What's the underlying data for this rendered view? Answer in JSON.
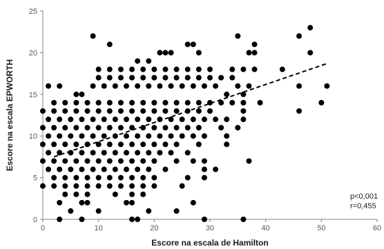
{
  "chart_data": {
    "type": "scatter",
    "xlabel": "Escore na escala de Hamilton",
    "ylabel": "Escore na escala EPWORTH",
    "xlim": [
      0,
      60
    ],
    "ylim": [
      0,
      25
    ],
    "x_ticks": [
      0,
      10,
      20,
      30,
      40,
      50,
      60
    ],
    "y_ticks": [
      0,
      5,
      10,
      15,
      20,
      25
    ],
    "grid": false,
    "legend": "none",
    "annotations": [
      "p<0,001",
      "r=0,455"
    ],
    "trendline": {
      "style": "dashed",
      "x": [
        2,
        51
      ],
      "y": [
        7.5,
        18.7
      ]
    },
    "series": [
      {
        "marker": "circle",
        "color": "#000000",
        "points": [
          [
            9,
            22
          ],
          [
            12,
            21
          ],
          [
            17,
            19
          ],
          [
            19,
            19
          ],
          [
            21,
            20
          ],
          [
            22,
            20
          ],
          [
            23,
            20
          ],
          [
            26,
            21
          ],
          [
            27,
            21
          ],
          [
            28,
            20
          ],
          [
            35,
            22
          ],
          [
            38,
            21
          ],
          [
            38,
            20
          ],
          [
            37,
            20
          ],
          [
            46,
            22
          ],
          [
            48,
            23
          ],
          [
            48,
            20
          ],
          [
            1,
            16
          ],
          [
            3,
            16
          ],
          [
            6,
            15
          ],
          [
            7,
            15
          ],
          [
            9,
            16
          ],
          [
            11,
            16
          ],
          [
            13,
            16
          ],
          [
            15,
            16
          ],
          [
            17,
            16
          ],
          [
            19,
            16
          ],
          [
            21,
            16
          ],
          [
            23,
            16
          ],
          [
            25,
            16
          ],
          [
            27,
            16
          ],
          [
            29,
            16
          ],
          [
            31,
            16
          ],
          [
            33,
            15
          ],
          [
            35,
            16
          ],
          [
            36,
            15
          ],
          [
            37,
            16
          ],
          [
            43,
            18
          ],
          [
            46,
            16
          ],
          [
            51,
            16
          ],
          [
            10,
            18
          ],
          [
            12,
            18
          ],
          [
            14,
            18
          ],
          [
            16,
            18
          ],
          [
            18,
            18
          ],
          [
            20,
            18
          ],
          [
            22,
            18
          ],
          [
            24,
            18
          ],
          [
            26,
            18
          ],
          [
            28,
            18
          ],
          [
            30,
            18
          ],
          [
            32,
            17
          ],
          [
            34,
            18
          ],
          [
            36,
            18
          ],
          [
            38,
            18
          ],
          [
            10,
            17
          ],
          [
            12,
            17
          ],
          [
            14,
            17
          ],
          [
            16,
            17
          ],
          [
            18,
            17
          ],
          [
            20,
            17
          ],
          [
            22,
            17
          ],
          [
            24,
            17
          ],
          [
            26,
            17
          ],
          [
            28,
            17
          ],
          [
            30,
            17
          ],
          [
            34,
            17
          ],
          [
            2,
            14
          ],
          [
            4,
            14
          ],
          [
            6,
            14
          ],
          [
            8,
            14
          ],
          [
            10,
            14
          ],
          [
            12,
            14
          ],
          [
            14,
            14
          ],
          [
            16,
            14
          ],
          [
            18,
            14
          ],
          [
            20,
            14
          ],
          [
            22,
            14
          ],
          [
            24,
            14
          ],
          [
            26,
            14
          ],
          [
            28,
            14
          ],
          [
            30,
            14
          ],
          [
            32,
            14
          ],
          [
            34,
            14
          ],
          [
            36,
            14
          ],
          [
            39,
            14
          ],
          [
            0,
            13
          ],
          [
            2,
            13
          ],
          [
            4,
            13
          ],
          [
            6,
            13
          ],
          [
            8,
            13
          ],
          [
            10,
            13
          ],
          [
            12,
            13
          ],
          [
            14,
            13
          ],
          [
            16,
            13
          ],
          [
            18,
            13
          ],
          [
            20,
            13
          ],
          [
            22,
            13
          ],
          [
            24,
            13
          ],
          [
            26,
            13
          ],
          [
            28,
            13
          ],
          [
            30,
            13
          ],
          [
            36,
            13
          ],
          [
            46,
            13
          ],
          [
            50,
            14
          ],
          [
            1,
            12
          ],
          [
            3,
            12
          ],
          [
            5,
            12
          ],
          [
            7,
            12
          ],
          [
            9,
            12
          ],
          [
            11,
            12
          ],
          [
            13,
            12
          ],
          [
            15,
            12
          ],
          [
            17,
            12
          ],
          [
            19,
            12
          ],
          [
            21,
            12
          ],
          [
            23,
            12
          ],
          [
            25,
            12
          ],
          [
            27,
            12
          ],
          [
            29,
            12
          ],
          [
            31,
            12
          ],
          [
            33,
            12
          ],
          [
            36,
            12
          ],
          [
            0,
            11
          ],
          [
            2,
            11
          ],
          [
            4,
            11
          ],
          [
            6,
            11
          ],
          [
            8,
            11
          ],
          [
            10,
            11
          ],
          [
            12,
            11
          ],
          [
            14,
            11
          ],
          [
            16,
            11
          ],
          [
            18,
            11
          ],
          [
            20,
            11
          ],
          [
            22,
            11
          ],
          [
            24,
            11
          ],
          [
            26,
            11
          ],
          [
            28,
            11
          ],
          [
            32,
            11
          ],
          [
            35,
            11
          ],
          [
            1,
            10
          ],
          [
            3,
            10
          ],
          [
            5,
            10
          ],
          [
            7,
            10
          ],
          [
            9,
            10
          ],
          [
            11,
            10
          ],
          [
            13,
            10
          ],
          [
            15,
            10
          ],
          [
            17,
            10
          ],
          [
            19,
            10
          ],
          [
            21,
            10
          ],
          [
            23,
            10
          ],
          [
            25,
            10
          ],
          [
            27,
            10
          ],
          [
            29,
            10
          ],
          [
            33,
            10
          ],
          [
            0,
            9
          ],
          [
            2,
            9
          ],
          [
            4,
            9
          ],
          [
            6,
            9
          ],
          [
            8,
            9
          ],
          [
            10,
            9
          ],
          [
            12,
            9
          ],
          [
            14,
            9
          ],
          [
            16,
            9
          ],
          [
            18,
            9
          ],
          [
            20,
            9
          ],
          [
            22,
            9
          ],
          [
            24,
            9
          ],
          [
            28,
            9
          ],
          [
            33,
            9
          ],
          [
            1,
            8
          ],
          [
            3,
            8
          ],
          [
            5,
            8
          ],
          [
            7,
            8
          ],
          [
            9,
            8
          ],
          [
            11,
            8
          ],
          [
            13,
            8
          ],
          [
            15,
            8
          ],
          [
            17,
            8
          ],
          [
            19,
            8
          ],
          [
            21,
            8
          ],
          [
            23,
            8
          ],
          [
            26,
            8
          ],
          [
            29,
            7
          ],
          [
            0,
            7
          ],
          [
            2,
            7
          ],
          [
            4,
            7
          ],
          [
            6,
            7
          ],
          [
            8,
            7
          ],
          [
            10,
            7
          ],
          [
            12,
            7
          ],
          [
            14,
            7
          ],
          [
            16,
            7
          ],
          [
            18,
            7
          ],
          [
            20,
            7
          ],
          [
            24,
            7
          ],
          [
            27,
            7
          ],
          [
            1,
            6
          ],
          [
            3,
            6
          ],
          [
            5,
            6
          ],
          [
            7,
            6
          ],
          [
            9,
            6
          ],
          [
            11,
            6
          ],
          [
            13,
            6
          ],
          [
            15,
            6
          ],
          [
            17,
            6
          ],
          [
            19,
            6
          ],
          [
            22,
            6
          ],
          [
            29,
            6
          ],
          [
            31,
            6
          ],
          [
            37,
            7
          ],
          [
            2,
            5
          ],
          [
            4,
            5
          ],
          [
            6,
            5
          ],
          [
            8,
            5
          ],
          [
            10,
            5
          ],
          [
            12,
            5
          ],
          [
            14,
            5
          ],
          [
            16,
            5
          ],
          [
            18,
            5
          ],
          [
            20,
            5
          ],
          [
            26,
            5
          ],
          [
            29,
            5
          ],
          [
            0,
            4
          ],
          [
            2,
            4
          ],
          [
            4,
            4
          ],
          [
            6,
            4
          ],
          [
            8,
            4
          ],
          [
            10,
            4
          ],
          [
            12,
            4
          ],
          [
            14,
            4
          ],
          [
            16,
            4
          ],
          [
            18,
            4
          ],
          [
            20,
            4
          ],
          [
            25,
            4
          ],
          [
            4,
            3
          ],
          [
            6,
            3
          ],
          [
            8,
            3
          ],
          [
            13,
            3
          ],
          [
            16,
            3
          ],
          [
            18,
            3
          ],
          [
            3,
            2
          ],
          [
            8,
            2
          ],
          [
            7,
            2
          ],
          [
            15,
            2
          ],
          [
            16,
            2
          ],
          [
            27,
            2
          ],
          [
            5,
            1
          ],
          [
            10,
            1
          ],
          [
            19,
            1
          ],
          [
            24,
            1
          ],
          [
            3,
            0
          ],
          [
            7,
            0
          ],
          [
            16,
            0
          ],
          [
            17,
            0
          ],
          [
            29,
            0
          ],
          [
            36,
            0
          ]
        ]
      }
    ]
  }
}
